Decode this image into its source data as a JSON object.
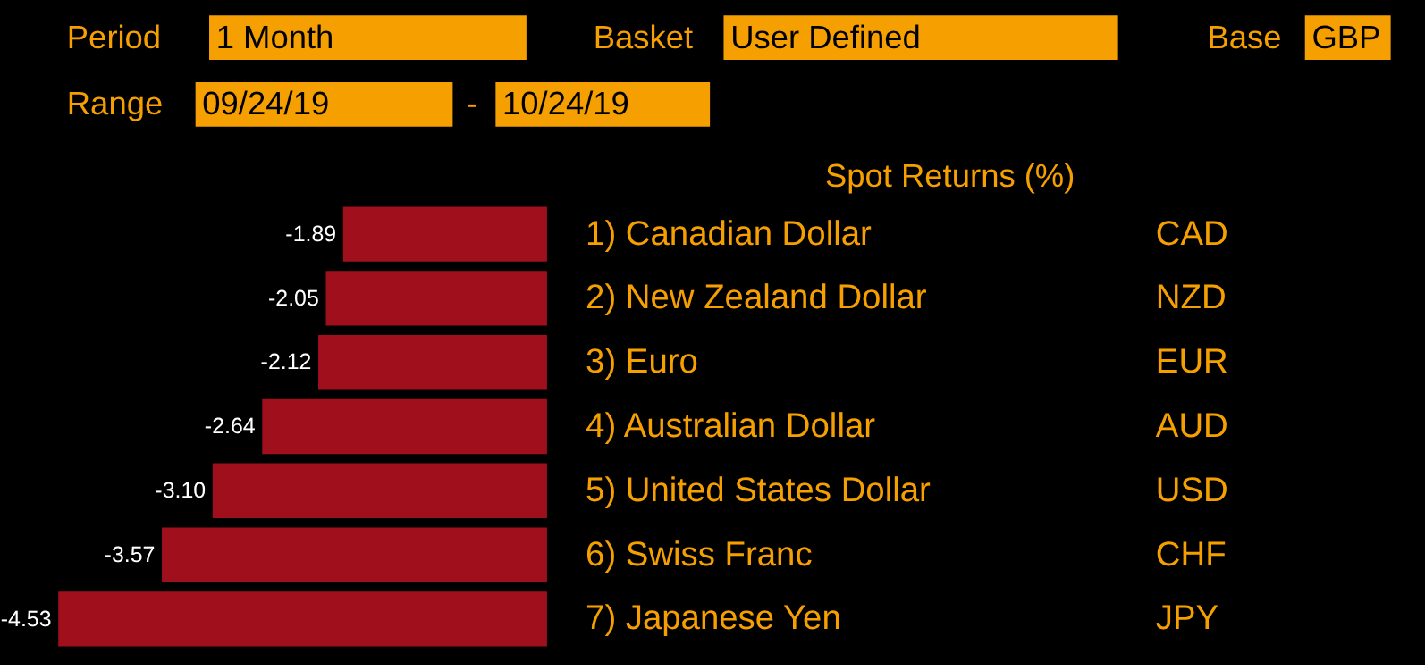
{
  "chart_data": {
    "type": "bar",
    "orientation": "horizontal",
    "title": "Spot Returns (%)",
    "categories": [
      "1) Canadian Dollar",
      "2) New Zealand Dollar",
      "3) Euro",
      "4) Australian Dollar",
      "5) United States Dollar",
      "6) Swiss Franc",
      "7) Japanese Yen"
    ],
    "y2_categories": [
      "CAD",
      "NZD",
      "EUR",
      "AUD",
      "USD",
      "CHF",
      "JPY"
    ],
    "values": [
      -1.89,
      -2.05,
      -2.12,
      -2.64,
      -3.1,
      -3.57,
      -4.53
    ],
    "color": "#a0101c",
    "xlim": [
      -4.53,
      0
    ],
    "value_labels": [
      "-1.89",
      "-2.05",
      "-2.12",
      "-2.64",
      "-3.10",
      "-3.57",
      "-4.53"
    ],
    "tick_labels": "y",
    "grid": false,
    "annotations": [
      "Period",
      "1 Month",
      "Basket",
      "User Defined",
      "Base",
      "GBP",
      "Range",
      "09/24/19",
      "-",
      "10/24/19"
    ]
  }
}
